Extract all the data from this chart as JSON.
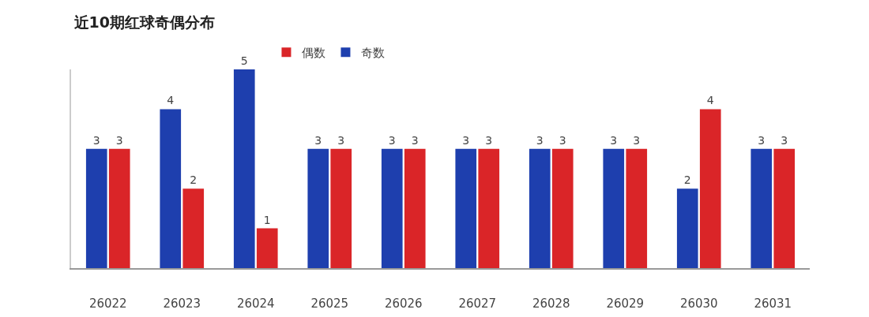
{
  "chart_data": {
    "type": "bar",
    "title": "近10期红球奇偶分布",
    "categories": [
      "26022",
      "26023",
      "26024",
      "26025",
      "26026",
      "26027",
      "26028",
      "26029",
      "26030",
      "26031"
    ],
    "series": [
      {
        "name": "奇数",
        "color": "#1e3fae",
        "values": [
          3,
          4,
          5,
          3,
          3,
          3,
          3,
          3,
          2,
          3
        ]
      },
      {
        "name": "偶数",
        "color": "#da2528",
        "values": [
          3,
          2,
          1,
          3,
          3,
          3,
          3,
          3,
          4,
          3
        ]
      }
    ],
    "ylim": [
      0,
      5
    ],
    "data_labels": true,
    "grid": false,
    "legend": "top",
    "tick_labels": "x"
  }
}
